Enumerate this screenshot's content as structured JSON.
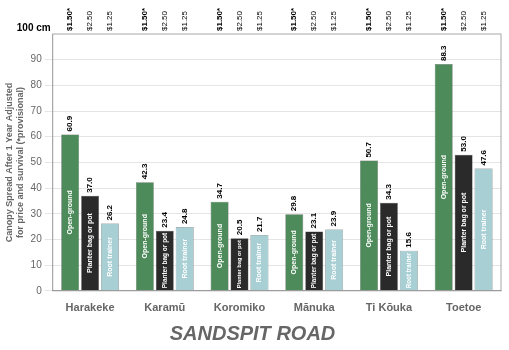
{
  "chart_data": {
    "type": "bar",
    "title": "SANDSPIT ROAD",
    "ylabel": [
      "Canopy Spread After 1 Year Adjusted",
      "for price and survival (*provisional)"
    ],
    "annotation": "100 cm",
    "categories": [
      "Harakeke",
      "Karamū",
      "Koromiko",
      "Mānuka",
      "Ti Kōuka",
      "Toetoe"
    ],
    "series": [
      {
        "name": "Open-ground",
        "color": "#4d8b5a",
        "price": "$1.50*",
        "values": [
          60.9,
          42.3,
          34.7,
          29.8,
          50.7,
          88.3
        ],
        "value_labels": [
          "60.9",
          "42.3",
          "34.7",
          "29.8",
          "50.7",
          "88.3"
        ]
      },
      {
        "name": "Planter bag or pot",
        "color": "#2a2a2a",
        "price": "$2.50",
        "values": [
          37.0,
          23.4,
          20.5,
          23.1,
          34.3,
          53.0
        ],
        "value_labels": [
          "37.0",
          "23.4",
          "20.5",
          "23.1",
          "34.3",
          "53.0"
        ]
      },
      {
        "name": "Root trainer",
        "color": "#a8cfd4",
        "price": "$1.25",
        "values": [
          26.2,
          24.8,
          21.7,
          23.9,
          15.6,
          47.6
        ],
        "value_labels": [
          "26.2",
          "24.8",
          "21.7",
          "23.9",
          "15.6",
          "47.6"
        ]
      }
    ],
    "ylim": [
      0,
      100
    ],
    "yticks": [
      0,
      10,
      20,
      30,
      40,
      50,
      60,
      70,
      80,
      90
    ],
    "grid": true,
    "data_labels": true
  }
}
